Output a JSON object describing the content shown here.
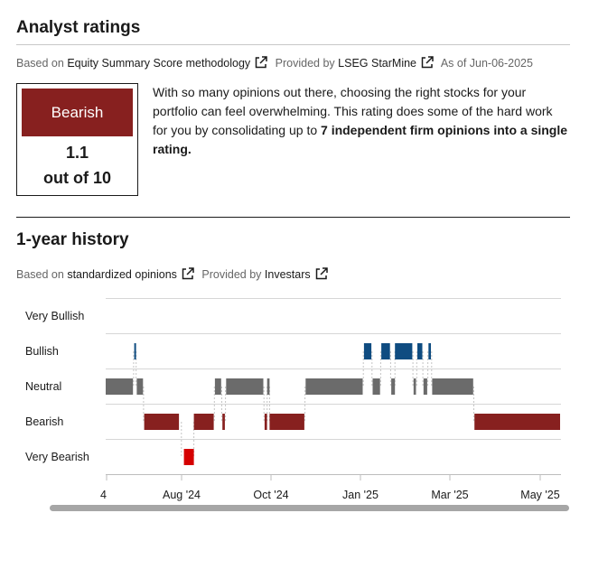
{
  "ratings": {
    "title": "Analyst ratings",
    "based_on_prefix": "Based on",
    "methodology_link": "Equity Summary Score methodology",
    "provided_by_prefix": "Provided by",
    "provider_link": "LSEG StarMine",
    "as_of": "As of Jun-06-2025",
    "badge_label": "Bearish",
    "badge_color": "#87201f",
    "score": "1.1",
    "score_scale": "out of 10",
    "description_plain": "With so many opinions out there, choosing the right stocks for your portfolio can feel overwhelming. This rating does some of the hard work for you by consolidating up to ",
    "description_bold": "7 independent firm opinions into a single rating."
  },
  "history": {
    "title": "1-year history",
    "based_on_prefix": "Based on",
    "opinions_link": "standardized opinions",
    "provided_by_prefix": "Provided by",
    "provider_link": "Investars",
    "levels": [
      "Very Bullish",
      "Bullish",
      "Neutral",
      "Bearish",
      "Very Bearish"
    ],
    "x_ticks": [
      "4",
      "Aug '24",
      "Oct '24",
      "Jan '25",
      "Mar '25",
      "May '25"
    ],
    "colors": {
      "Bullish": "#0f4c81",
      "Neutral": "#6b6b6b",
      "Bearish": "#87201f",
      "Very Bearish": "#d50000"
    },
    "segments": [
      {
        "level": "Neutral",
        "start": "2024-06-05",
        "end": "2024-06-27"
      },
      {
        "level": "Bullish",
        "start": "2024-06-28",
        "end": "2024-06-29"
      },
      {
        "level": "Neutral",
        "start": "2024-06-30",
        "end": "2024-07-05"
      },
      {
        "level": "Bearish",
        "start": "2024-07-06",
        "end": "2024-08-03"
      },
      {
        "level": "Very Bearish",
        "start": "2024-08-07",
        "end": "2024-08-15"
      },
      {
        "level": "Bearish",
        "start": "2024-08-15",
        "end": "2024-08-31"
      },
      {
        "level": "Neutral",
        "start": "2024-09-01",
        "end": "2024-09-06"
      },
      {
        "level": "Bearish",
        "start": "2024-09-07",
        "end": "2024-09-09"
      },
      {
        "level": "Neutral",
        "start": "2024-09-10",
        "end": "2024-10-10"
      },
      {
        "level": "Bearish",
        "start": "2024-10-11",
        "end": "2024-10-13"
      },
      {
        "level": "Neutral",
        "start": "2024-10-13",
        "end": "2024-10-15"
      },
      {
        "level": "Bearish",
        "start": "2024-10-15",
        "end": "2024-11-12"
      },
      {
        "level": "Neutral",
        "start": "2024-11-13",
        "end": "2024-12-29"
      },
      {
        "level": "Bullish",
        "start": "2024-12-30",
        "end": "2025-01-05"
      },
      {
        "level": "Neutral",
        "start": "2025-01-06",
        "end": "2025-01-12"
      },
      {
        "level": "Bullish",
        "start": "2025-01-13",
        "end": "2025-01-20"
      },
      {
        "level": "Neutral",
        "start": "2025-01-21",
        "end": "2025-01-24"
      },
      {
        "level": "Bullish",
        "start": "2025-01-24",
        "end": "2025-02-07"
      },
      {
        "level": "Neutral",
        "start": "2025-02-08",
        "end": "2025-02-10"
      },
      {
        "level": "Bullish",
        "start": "2025-02-11",
        "end": "2025-02-15"
      },
      {
        "level": "Neutral",
        "start": "2025-02-16",
        "end": "2025-02-19"
      },
      {
        "level": "Bullish",
        "start": "2025-02-20",
        "end": "2025-02-22"
      },
      {
        "level": "Neutral",
        "start": "2025-02-23",
        "end": "2025-03-28"
      },
      {
        "level": "Bearish",
        "start": "2025-03-29",
        "end": "2025-06-06"
      }
    ]
  }
}
